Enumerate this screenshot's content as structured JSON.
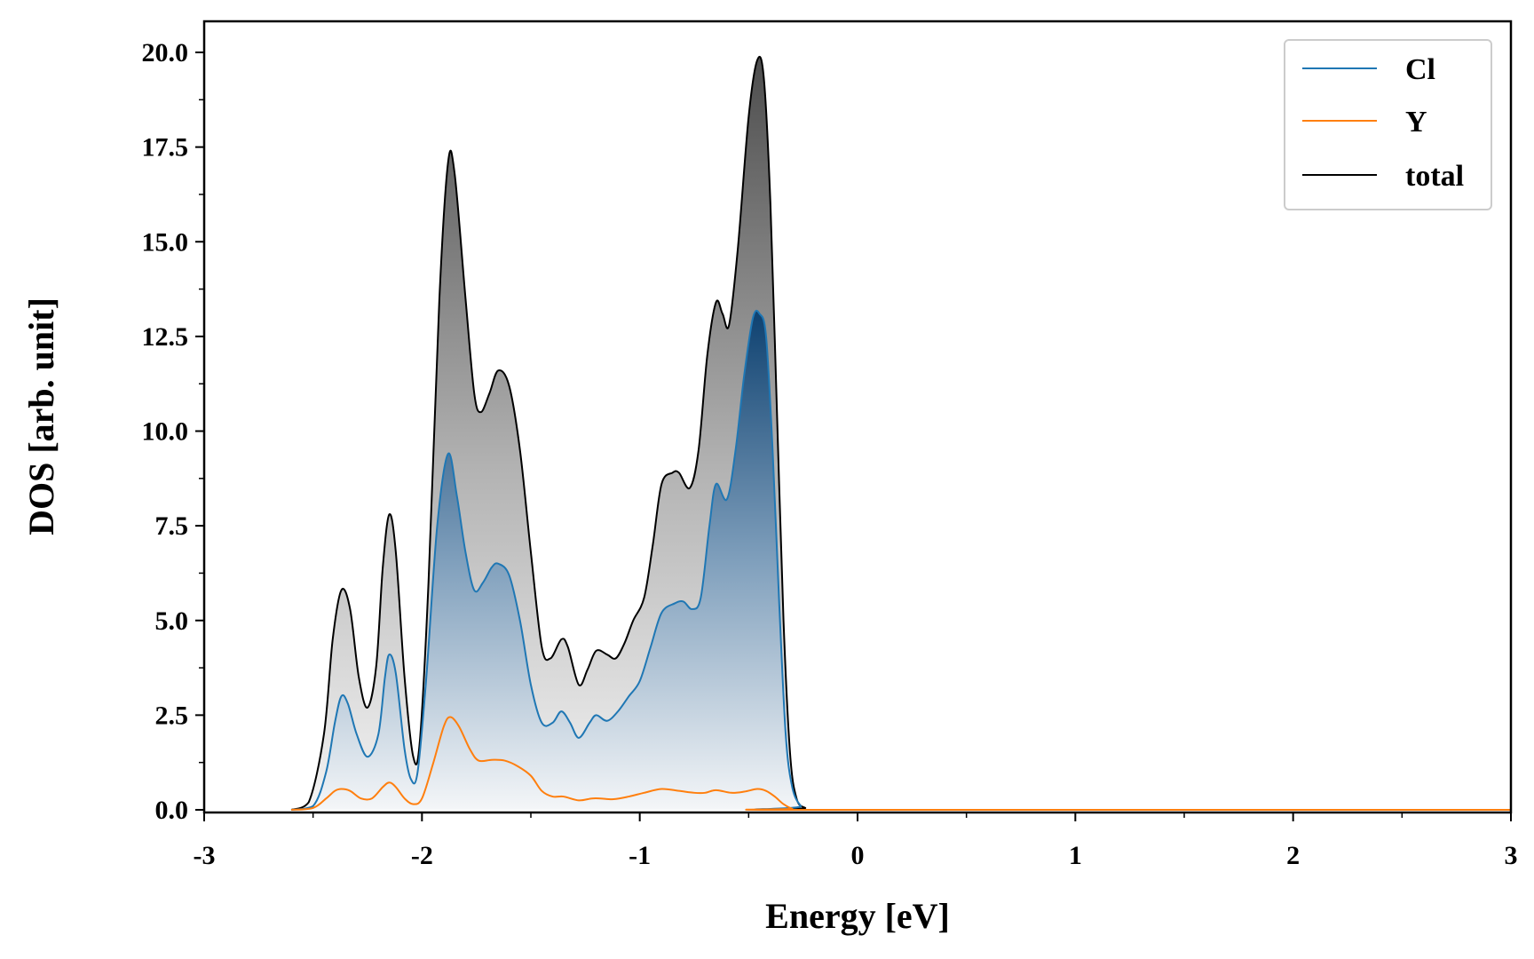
{
  "chart_data": {
    "type": "area",
    "xlabel": "Energy [eV]",
    "ylabel": "DOS [arb. unit]",
    "xlim": [
      -3,
      3
    ],
    "ylim": [
      0,
      20.8
    ],
    "xticks": [
      -3,
      -2,
      -1,
      0,
      1,
      2,
      3
    ],
    "xtick_labels": [
      "-3",
      "-2",
      "-1",
      "0",
      "1",
      "2",
      "3"
    ],
    "yticks": [
      0,
      2.5,
      5,
      7.5,
      10,
      12.5,
      15,
      17.5,
      20
    ],
    "ytick_labels": [
      "0.0",
      "2.5",
      "5.0",
      "7.5",
      "10.0",
      "12.5",
      "15.0",
      "17.5",
      "20.0"
    ],
    "legend_position": "top-right",
    "grid": false,
    "series": [
      {
        "name": "Cl",
        "color": "#1f77b4",
        "points": [
          [
            -2.6,
            0
          ],
          [
            -2.5,
            0.1
          ],
          [
            -2.44,
            1.0
          ],
          [
            -2.4,
            2.3
          ],
          [
            -2.37,
            3.0
          ],
          [
            -2.34,
            2.8
          ],
          [
            -2.3,
            2.0
          ],
          [
            -2.25,
            1.4
          ],
          [
            -2.2,
            2.0
          ],
          [
            -2.17,
            3.5
          ],
          [
            -2.15,
            4.1
          ],
          [
            -2.12,
            3.6
          ],
          [
            -2.08,
            1.6
          ],
          [
            -2.05,
            0.8
          ],
          [
            -2.02,
            1.0
          ],
          [
            -1.98,
            3.5
          ],
          [
            -1.93,
            7.5
          ],
          [
            -1.88,
            9.4
          ],
          [
            -1.84,
            8.3
          ],
          [
            -1.8,
            6.8
          ],
          [
            -1.76,
            5.8
          ],
          [
            -1.72,
            6.0
          ],
          [
            -1.68,
            6.4
          ],
          [
            -1.65,
            6.5
          ],
          [
            -1.6,
            6.2
          ],
          [
            -1.55,
            5.0
          ],
          [
            -1.5,
            3.3
          ],
          [
            -1.45,
            2.3
          ],
          [
            -1.4,
            2.3
          ],
          [
            -1.36,
            2.6
          ],
          [
            -1.32,
            2.3
          ],
          [
            -1.28,
            1.9
          ],
          [
            -1.23,
            2.3
          ],
          [
            -1.2,
            2.5
          ],
          [
            -1.15,
            2.35
          ],
          [
            -1.1,
            2.6
          ],
          [
            -1.05,
            3.0
          ],
          [
            -1.0,
            3.4
          ],
          [
            -0.95,
            4.3
          ],
          [
            -0.9,
            5.2
          ],
          [
            -0.84,
            5.45
          ],
          [
            -0.8,
            5.5
          ],
          [
            -0.76,
            5.3
          ],
          [
            -0.72,
            5.6
          ],
          [
            -0.68,
            7.5
          ],
          [
            -0.65,
            8.6
          ],
          [
            -0.6,
            8.2
          ],
          [
            -0.56,
            9.5
          ],
          [
            -0.52,
            11.5
          ],
          [
            -0.48,
            13.0
          ],
          [
            -0.45,
            13.1
          ],
          [
            -0.42,
            12.5
          ],
          [
            -0.39,
            9.5
          ],
          [
            -0.36,
            5.5
          ],
          [
            -0.33,
            2.0
          ],
          [
            -0.3,
            0.6
          ],
          [
            -0.26,
            0.1
          ],
          [
            -0.22,
            0
          ],
          [
            3,
            0
          ]
        ]
      },
      {
        "name": "Y",
        "color": "#ff7f0e",
        "points": [
          [
            -2.6,
            0
          ],
          [
            -2.5,
            0.05
          ],
          [
            -2.44,
            0.3
          ],
          [
            -2.4,
            0.5
          ],
          [
            -2.37,
            0.55
          ],
          [
            -2.33,
            0.5
          ],
          [
            -2.28,
            0.3
          ],
          [
            -2.23,
            0.3
          ],
          [
            -2.18,
            0.6
          ],
          [
            -2.15,
            0.72
          ],
          [
            -2.12,
            0.6
          ],
          [
            -2.08,
            0.3
          ],
          [
            -2.04,
            0.15
          ],
          [
            -2.0,
            0.3
          ],
          [
            -1.95,
            1.2
          ],
          [
            -1.9,
            2.2
          ],
          [
            -1.87,
            2.45
          ],
          [
            -1.83,
            2.2
          ],
          [
            -1.78,
            1.6
          ],
          [
            -1.74,
            1.3
          ],
          [
            -1.68,
            1.32
          ],
          [
            -1.62,
            1.3
          ],
          [
            -1.56,
            1.15
          ],
          [
            -1.5,
            0.9
          ],
          [
            -1.45,
            0.5
          ],
          [
            -1.4,
            0.35
          ],
          [
            -1.35,
            0.35
          ],
          [
            -1.28,
            0.25
          ],
          [
            -1.22,
            0.3
          ],
          [
            -1.18,
            0.3
          ],
          [
            -1.12,
            0.28
          ],
          [
            -1.05,
            0.35
          ],
          [
            -0.98,
            0.45
          ],
          [
            -0.9,
            0.55
          ],
          [
            -0.82,
            0.5
          ],
          [
            -0.75,
            0.45
          ],
          [
            -0.7,
            0.45
          ],
          [
            -0.65,
            0.52
          ],
          [
            -0.58,
            0.45
          ],
          [
            -0.52,
            0.48
          ],
          [
            -0.46,
            0.55
          ],
          [
            -0.42,
            0.5
          ],
          [
            -0.38,
            0.35
          ],
          [
            -0.34,
            0.15
          ],
          [
            -0.3,
            0.03
          ],
          [
            -0.26,
            0
          ],
          [
            3,
            0
          ]
        ]
      },
      {
        "name": "total",
        "color": "#000000",
        "points": [
          [
            -2.6,
            0
          ],
          [
            -2.52,
            0.2
          ],
          [
            -2.45,
            2.0
          ],
          [
            -2.41,
            4.5
          ],
          [
            -2.37,
            5.8
          ],
          [
            -2.33,
            5.3
          ],
          [
            -2.29,
            3.5
          ],
          [
            -2.25,
            2.7
          ],
          [
            -2.21,
            3.8
          ],
          [
            -2.18,
            6.4
          ],
          [
            -2.15,
            7.8
          ],
          [
            -2.12,
            6.8
          ],
          [
            -2.08,
            3.5
          ],
          [
            -2.04,
            1.4
          ],
          [
            -2.01,
            1.8
          ],
          [
            -1.97,
            6.0
          ],
          [
            -1.92,
            13.5
          ],
          [
            -1.88,
            17.1
          ],
          [
            -1.85,
            16.8
          ],
          [
            -1.8,
            13.5
          ],
          [
            -1.76,
            11.0
          ],
          [
            -1.73,
            10.5
          ],
          [
            -1.69,
            11.0
          ],
          [
            -1.65,
            11.6
          ],
          [
            -1.6,
            11.2
          ],
          [
            -1.55,
            9.5
          ],
          [
            -1.5,
            6.8
          ],
          [
            -1.45,
            4.3
          ],
          [
            -1.41,
            4.0
          ],
          [
            -1.36,
            4.5
          ],
          [
            -1.33,
            4.3
          ],
          [
            -1.28,
            3.3
          ],
          [
            -1.24,
            3.7
          ],
          [
            -1.2,
            4.2
          ],
          [
            -1.15,
            4.1
          ],
          [
            -1.11,
            4.0
          ],
          [
            -1.07,
            4.4
          ],
          [
            -1.03,
            5.0
          ],
          [
            -0.98,
            5.6
          ],
          [
            -0.94,
            7.0
          ],
          [
            -0.9,
            8.6
          ],
          [
            -0.85,
            8.9
          ],
          [
            -0.82,
            8.9
          ],
          [
            -0.77,
            8.5
          ],
          [
            -0.73,
            9.5
          ],
          [
            -0.69,
            12.0
          ],
          [
            -0.65,
            13.4
          ],
          [
            -0.62,
            13.1
          ],
          [
            -0.59,
            12.8
          ],
          [
            -0.55,
            14.8
          ],
          [
            -0.5,
            18.3
          ],
          [
            -0.46,
            19.8
          ],
          [
            -0.43,
            19.3
          ],
          [
            -0.4,
            16.0
          ],
          [
            -0.37,
            10.5
          ],
          [
            -0.34,
            5.0
          ],
          [
            -0.31,
            1.5
          ],
          [
            -0.28,
            0.3
          ],
          [
            -0.24,
            0.05
          ],
          [
            -0.2,
            0
          ],
          [
            3,
            0
          ]
        ]
      }
    ]
  }
}
